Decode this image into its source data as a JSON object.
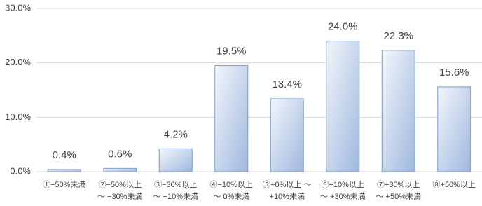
{
  "chart_data": {
    "type": "bar",
    "categories": [
      "①−50%未満",
      "②−50%以上\n～ −30%未満",
      "③−30%以上\n～ −10%未満",
      "④−10%以上\n～ 0%未満",
      "⑤+0%以上 ～\n+10%未満",
      "⑥+10%以上\n～ +30%未満",
      "⑦+30%以上\n～ +50%未満",
      "⑧+50%以上"
    ],
    "values": [
      0.4,
      0.6,
      4.2,
      19.5,
      13.4,
      24.0,
      22.3,
      15.6
    ],
    "value_labels": [
      "0.4%",
      "0.6%",
      "4.2%",
      "19.5%",
      "13.4%",
      "24.0%",
      "22.3%",
      "15.6%"
    ],
    "color": "#b4c7e7",
    "ylim": [
      0,
      30
    ],
    "yticks": [
      {
        "value": 0,
        "label": "0.0%"
      },
      {
        "value": 10,
        "label": "10.0%"
      },
      {
        "value": 20,
        "label": "20.0%"
      },
      {
        "value": 30,
        "label": "30.0%"
      }
    ],
    "grid": true
  }
}
